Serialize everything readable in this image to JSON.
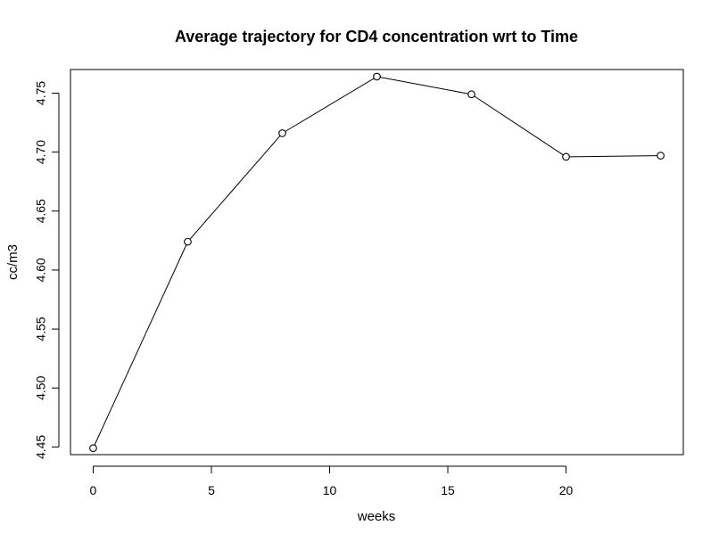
{
  "chart_data": {
    "type": "line",
    "title": "Average trajectory for CD4 concentration wrt to Time",
    "xlabel": "weeks",
    "ylabel": "cc/m3",
    "xlim": [
      -0.96,
      24.96
    ],
    "ylim": [
      4.4435,
      4.77
    ],
    "x_ticks": [
      0,
      5,
      10,
      15,
      20
    ],
    "y_ticks": [
      4.45,
      4.5,
      4.55,
      4.6,
      4.65,
      4.7,
      4.75
    ],
    "x_tick_labels": [
      "0",
      "5",
      "10",
      "15",
      "20"
    ],
    "y_tick_labels": [
      "4.45",
      "4.50",
      "4.55",
      "4.60",
      "4.65",
      "4.70",
      "4.75"
    ],
    "grid": false,
    "legend": "none",
    "marker": "open-circle",
    "series": [
      {
        "x": [
          0,
          4,
          8,
          12,
          16,
          20,
          24
        ],
        "values": [
          4.449,
          4.624,
          4.716,
          4.764,
          4.749,
          4.696,
          4.697
        ],
        "color": "#000000"
      }
    ]
  }
}
